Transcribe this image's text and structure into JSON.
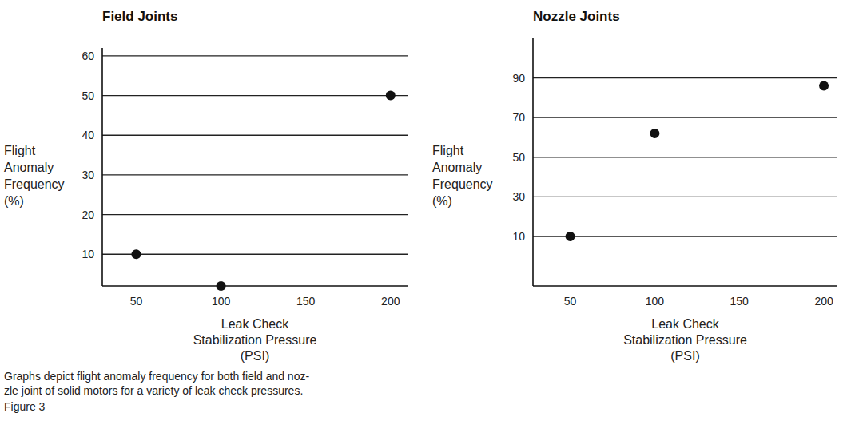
{
  "chart_data": [
    {
      "type": "scatter",
      "title": "Field Joints",
      "x_label": "Leak Check\nStabilization Pressure\n(PSI)",
      "y_label": "Flight\nAnomaly\nFrequency\n(%)",
      "x": [
        50,
        100,
        200
      ],
      "values": [
        10,
        2,
        50
      ],
      "color": "#111111",
      "marker": "circle",
      "xlim": [
        30,
        210
      ],
      "xticks": [
        50,
        100,
        150,
        200
      ],
      "ylim": [
        2,
        62
      ],
      "yticks": [
        10,
        20,
        30,
        40,
        50,
        60
      ],
      "grid": true
    },
    {
      "type": "scatter",
      "title": "Nozzle Joints",
      "x_label": "Leak Check\nStabilization Pressure\n(PSI)",
      "y_label": "Flight\nAnomaly\nFrequency\n(%)",
      "x": [
        50,
        100,
        200
      ],
      "values": [
        10,
        62,
        86
      ],
      "color": "#111111",
      "marker": "circle",
      "xlim": [
        28,
        208
      ],
      "xticks": [
        50,
        100,
        150,
        200
      ],
      "ylim": [
        -15,
        110
      ],
      "yticks": [
        10,
        30,
        50,
        70,
        90
      ],
      "grid": true
    }
  ],
  "caption": "Graphs depict flight anomaly frequency for both field and noz-\nzle joint of solid motors for a variety of leak check pressures.",
  "figure_label": "Figure 3"
}
